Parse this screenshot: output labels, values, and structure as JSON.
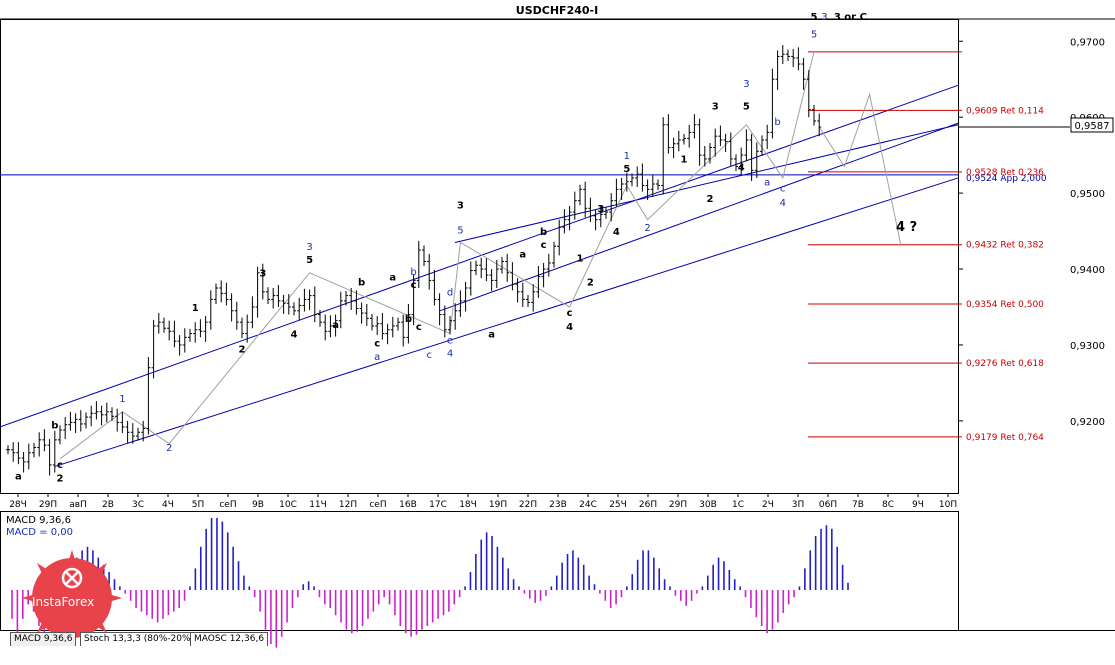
{
  "window": {
    "title": "USDCHF240-I"
  },
  "current_price": {
    "label": "0,9587",
    "value": 0.9587
  },
  "colors": {
    "channel": "#0000b0",
    "candle": "#000000",
    "projection": "#a0a0a0",
    "fib": "#cc0000",
    "wave_dark": "#000000",
    "wave_blue": "#1a2fb0",
    "macd_pos": "#2020c8",
    "macd_neg": "#cc22cc",
    "brand": "#e8424a"
  },
  "chart_data": {
    "type": "candlestick",
    "symbol": "USDCHF240-I",
    "ylim": [
      0.9105,
      0.9728
    ],
    "y_ticks": [
      {
        "value": 0.97,
        "label": "0,9700"
      },
      {
        "value": 0.96,
        "label": "0,9600"
      },
      {
        "value": 0.95,
        "label": "0,9500"
      },
      {
        "value": 0.94,
        "label": "0,9400"
      },
      {
        "value": 0.93,
        "label": "0,9300"
      },
      {
        "value": 0.92,
        "label": "0,9200"
      }
    ],
    "x_ticks": [
      "28Ч",
      "29П",
      "авП",
      "2В",
      "3С",
      "4Ч",
      "5П",
      "сеП",
      "9В",
      "10С",
      "11Ч",
      "12П",
      "сеП",
      "16В",
      "17С",
      "18Ч",
      "19П",
      "22П",
      "23В",
      "24С",
      "25Ч",
      "26П",
      "29П",
      "30В",
      "1С",
      "2Ч",
      "3П",
      "06П",
      "7В",
      "8С",
      "9Ч",
      "10П"
    ],
    "fib_levels": [
      {
        "value": 0.9686,
        "label": ""
      },
      {
        "value": 0.9609,
        "label": "0,9609 Ret 0,114"
      },
      {
        "value": 0.9528,
        "label": "0,9528 Ret 0,236"
      },
      {
        "value": 0.9524,
        "label": "0,9524 App 2,000"
      },
      {
        "value": 0.9432,
        "label": "0,9432 Ret 0,382"
      },
      {
        "value": 0.9354,
        "label": "0,9354 Ret 0,500"
      },
      {
        "value": 0.9276,
        "label": "0,9276 Ret 0,618"
      },
      {
        "value": 0.9179,
        "label": "0,9179 Ret 0,764"
      }
    ],
    "horizontal_line": 0.9524,
    "closes": [
      0.9162,
      0.9158,
      0.9151,
      0.9146,
      0.9158,
      0.9165,
      0.9175,
      0.9168,
      0.9142,
      0.9175,
      0.9188,
      0.9195,
      0.9198,
      0.9202,
      0.9196,
      0.9205,
      0.921,
      0.9212,
      0.9208,
      0.9212,
      0.9206,
      0.9198,
      0.9192,
      0.9185,
      0.918,
      0.9185,
      0.919,
      0.927,
      0.9325,
      0.933,
      0.9322,
      0.9318,
      0.9305,
      0.93,
      0.931,
      0.9315,
      0.932,
      0.9318,
      0.933,
      0.936,
      0.9375,
      0.9368,
      0.936,
      0.9345,
      0.933,
      0.9315,
      0.933,
      0.935,
      0.9395,
      0.937,
      0.936,
      0.9365,
      0.9358,
      0.9355,
      0.935,
      0.9345,
      0.9352,
      0.936,
      0.9365,
      0.934,
      0.933,
      0.9318,
      0.9325,
      0.9332,
      0.9358,
      0.9365,
      0.9358,
      0.9348,
      0.9342,
      0.9335,
      0.9325,
      0.9328,
      0.9315,
      0.932,
      0.9325,
      0.933,
      0.931,
      0.934,
      0.9385,
      0.9425,
      0.941,
      0.9385,
      0.936,
      0.934,
      0.932,
      0.9332,
      0.9345,
      0.9358,
      0.9375,
      0.9398,
      0.9405,
      0.94,
      0.9392,
      0.9385,
      0.94,
      0.941,
      0.9395,
      0.938,
      0.937,
      0.936,
      0.9356,
      0.937,
      0.939,
      0.94,
      0.9408,
      0.943,
      0.9455,
      0.9465,
      0.9475,
      0.949,
      0.9505,
      0.948,
      0.947,
      0.9465,
      0.9472,
      0.9475,
      0.949,
      0.9505,
      0.9512,
      0.9515,
      0.952,
      0.9525,
      0.951,
      0.9505,
      0.9512,
      0.951,
      0.959,
      0.956,
      0.9565,
      0.957,
      0.9572,
      0.958,
      0.959,
      0.955,
      0.9545,
      0.956,
      0.9575,
      0.957,
      0.9568,
      0.9545,
      0.9535,
      0.955,
      0.957,
      0.953,
      0.9555,
      0.957,
      0.958,
      0.965,
      0.968,
      0.9683,
      0.968,
      0.9678,
      0.967,
      0.965,
      0.961,
      0.9595,
      0.9587
    ],
    "projection_path": [
      [
        0.9587,
        0
      ],
      [
        0.9535,
        4
      ],
      [
        0.963,
        8
      ],
      [
        0.943,
        13
      ]
    ],
    "wave_labels": [
      {
        "text": "a",
        "i": 2,
        "v": 0.9123,
        "color": "dark"
      },
      {
        "text": "b",
        "i": 9,
        "v": 0.919,
        "color": "dark"
      },
      {
        "text": "c",
        "i": 10,
        "v": 0.9138,
        "color": "dark"
      },
      {
        "text": "2",
        "i": 10,
        "v": 0.912,
        "color": "dark"
      },
      {
        "text": "1",
        "i": 22,
        "v": 0.9225,
        "color": "blue"
      },
      {
        "text": "2",
        "i": 31,
        "v": 0.916,
        "color": "blue"
      },
      {
        "text": "1",
        "i": 36,
        "v": 0.9345,
        "color": "dark"
      },
      {
        "text": "2",
        "i": 45,
        "v": 0.929,
        "color": "dark"
      },
      {
        "text": "3",
        "i": 49,
        "v": 0.939,
        "color": "dark"
      },
      {
        "text": "3",
        "i": 58,
        "v": 0.9425,
        "color": "blue"
      },
      {
        "text": "5",
        "i": 58,
        "v": 0.9408,
        "color": "dark"
      },
      {
        "text": "4",
        "i": 55,
        "v": 0.931,
        "color": "dark"
      },
      {
        "text": "a",
        "i": 63,
        "v": 0.9322,
        "color": "dark"
      },
      {
        "text": "b",
        "i": 68,
        "v": 0.9378,
        "color": "dark"
      },
      {
        "text": "c",
        "i": 71,
        "v": 0.9298,
        "color": "dark"
      },
      {
        "text": "a",
        "i": 71,
        "v": 0.928,
        "color": "blue"
      },
      {
        "text": "a",
        "i": 74,
        "v": 0.9385,
        "color": "dark"
      },
      {
        "text": "b",
        "i": 78,
        "v": 0.9392,
        "color": "blue"
      },
      {
        "text": "c",
        "i": 78,
        "v": 0.9375,
        "color": "dark"
      },
      {
        "text": "b",
        "i": 77,
        "v": 0.933,
        "color": "dark"
      },
      {
        "text": "c",
        "i": 79,
        "v": 0.932,
        "color": "dark"
      },
      {
        "text": "c",
        "i": 81,
        "v": 0.9283,
        "color": "blue"
      },
      {
        "text": "d",
        "i": 85,
        "v": 0.9365,
        "color": "blue"
      },
      {
        "text": "e",
        "i": 85,
        "v": 0.9302,
        "color": "blue"
      },
      {
        "text": "4",
        "i": 85,
        "v": 0.9285,
        "color": "blue"
      },
      {
        "text": "3",
        "i": 87,
        "v": 0.948,
        "color": "dark"
      },
      {
        "text": "5",
        "i": 87,
        "v": 0.9447,
        "color": "blue"
      },
      {
        "text": "a",
        "i": 93,
        "v": 0.931,
        "color": "dark"
      },
      {
        "text": "a",
        "i": 99,
        "v": 0.9415,
        "color": "dark"
      },
      {
        "text": "b",
        "i": 103,
        "v": 0.9445,
        "color": "dark"
      },
      {
        "text": "c",
        "i": 103,
        "v": 0.9428,
        "color": "dark"
      },
      {
        "text": "c",
        "i": 108,
        "v": 0.9338,
        "color": "dark"
      },
      {
        "text": "4",
        "i": 108,
        "v": 0.932,
        "color": "dark"
      },
      {
        "text": "1",
        "i": 110,
        "v": 0.941,
        "color": "dark"
      },
      {
        "text": "2",
        "i": 112,
        "v": 0.9378,
        "color": "dark"
      },
      {
        "text": "3",
        "i": 114,
        "v": 0.9475,
        "color": "dark"
      },
      {
        "text": "4",
        "i": 117,
        "v": 0.9445,
        "color": "dark"
      },
      {
        "text": "1",
        "i": 119,
        "v": 0.9545,
        "color": "blue"
      },
      {
        "text": "5",
        "i": 119,
        "v": 0.9528,
        "color": "dark"
      },
      {
        "text": "2",
        "i": 123,
        "v": 0.945,
        "color": "blue"
      },
      {
        "text": "1",
        "i": 130,
        "v": 0.954,
        "color": "dark"
      },
      {
        "text": "2",
        "i": 135,
        "v": 0.9488,
        "color": "dark"
      },
      {
        "text": "3",
        "i": 136,
        "v": 0.961,
        "color": "dark"
      },
      {
        "text": "3",
        "i": 142,
        "v": 0.964,
        "color": "blue"
      },
      {
        "text": "5",
        "i": 142,
        "v": 0.961,
        "color": "dark"
      },
      {
        "text": "4",
        "i": 141,
        "v": 0.953,
        "color": "dark"
      },
      {
        "text": "a",
        "i": 146,
        "v": 0.951,
        "color": "blue"
      },
      {
        "text": "b",
        "i": 148,
        "v": 0.959,
        "color": "blue"
      },
      {
        "text": "c",
        "i": 149,
        "v": 0.9502,
        "color": "blue"
      },
      {
        "text": "4",
        "i": 149,
        "v": 0.9483,
        "color": "blue"
      },
      {
        "text": "5",
        "i": 155,
        "v": 0.9705,
        "color": "blue"
      },
      {
        "text": "5",
        "i": 155,
        "v": 0.9728,
        "color": "dark"
      },
      {
        "text": "3",
        "i": 157,
        "v": 0.9728,
        "color": "blue"
      },
      {
        "text": "3 or C",
        "i": 162,
        "v": 0.9728,
        "color": "dark"
      }
    ],
    "forecast_label": "4 ?",
    "indicator": {
      "label_line1": "MACD 9,36,6",
      "label_line2": "MACD = 0,00",
      "histogram": [
        -0.4,
        -0.6,
        -0.4,
        -0.2,
        -0.3,
        -0.5,
        -0.6,
        -0.5,
        -0.3,
        -0.1,
        0.1,
        0.25,
        0.45,
        0.55,
        0.6,
        0.55,
        0.45,
        0.35,
        0.25,
        0.15,
        0.05,
        -0.05,
        -0.15,
        -0.25,
        -0.3,
        -0.35,
        -0.4,
        -0.45,
        -0.4,
        -0.35,
        -0.3,
        -0.25,
        -0.15,
        0.05,
        0.3,
        0.6,
        0.85,
        1.0,
        1.0,
        0.95,
        0.8,
        0.6,
        0.4,
        0.2,
        0.05,
        -0.1,
        -0.3,
        -0.55,
        -0.75,
        -0.8,
        -0.65,
        -0.45,
        -0.25,
        -0.1,
        0.08,
        0.12,
        0.05,
        -0.1,
        -0.2,
        -0.25,
        -0.35,
        -0.45,
        -0.55,
        -0.6,
        -0.58,
        -0.5,
        -0.4,
        -0.3,
        -0.2,
        -0.1,
        -0.2,
        -0.35,
        -0.5,
        -0.6,
        -0.65,
        -0.62,
        -0.55,
        -0.5,
        -0.45,
        -0.4,
        -0.35,
        -0.3,
        -0.2,
        -0.1,
        0.05,
        0.25,
        0.5,
        0.7,
        0.8,
        0.75,
        0.6,
        0.45,
        0.3,
        0.15,
        0.05,
        -0.05,
        -0.12,
        -0.18,
        -0.15,
        -0.08,
        0.05,
        0.2,
        0.38,
        0.5,
        0.55,
        0.45,
        0.35,
        0.2,
        0.08,
        -0.05,
        -0.15,
        -0.25,
        -0.2,
        -0.1,
        0.05,
        0.22,
        0.42,
        0.55,
        0.55,
        0.45,
        0.3,
        0.15,
        0.05,
        -0.08,
        -0.15,
        -0.22,
        -0.15,
        -0.05,
        0.05,
        0.2,
        0.35,
        0.45,
        0.4,
        0.28,
        0.15,
        0.05,
        -0.1,
        -0.25,
        -0.38,
        -0.5,
        -0.6,
        -0.55,
        -0.45,
        -0.32,
        -0.2,
        -0.1,
        0.05,
        0.3,
        0.55,
        0.75,
        0.85,
        0.9,
        0.85,
        0.6,
        0.35,
        0.1
      ],
      "tabs": [
        "MACD 9,36,6",
        "Stoch 13,3,3 (80%-20%)",
        "MAOSC 12,36,6"
      ]
    }
  },
  "brand": {
    "name": "InstaForex"
  }
}
